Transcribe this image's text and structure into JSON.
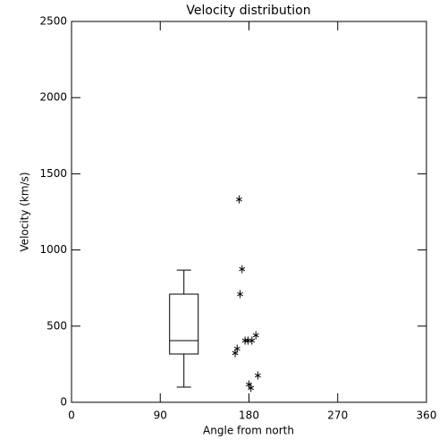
{
  "chart_data": {
    "type": "box",
    "title": "Velocity distribution",
    "x_label": "Angle from north",
    "y_label": "Velocity (km/s)",
    "xlim": [
      0,
      360
    ],
    "xticks": [
      0,
      90,
      180,
      270,
      360
    ],
    "ylim": [
      0,
      2500
    ],
    "yticks": [
      0,
      500,
      1000,
      1500,
      2000,
      2500
    ],
    "box": {
      "x": 114,
      "whisker_low": 100,
      "q1": 317,
      "median": 405,
      "q3": 710,
      "whisker_high": 868
    },
    "points": {
      "x": [
        170,
        173,
        171,
        187,
        183,
        179,
        176,
        168,
        166,
        189,
        180,
        182
      ],
      "y": [
        1332,
        874,
        710,
        440,
        405,
        405,
        405,
        352,
        323,
        176,
        117,
        94
      ]
    },
    "color": "#000000"
  }
}
